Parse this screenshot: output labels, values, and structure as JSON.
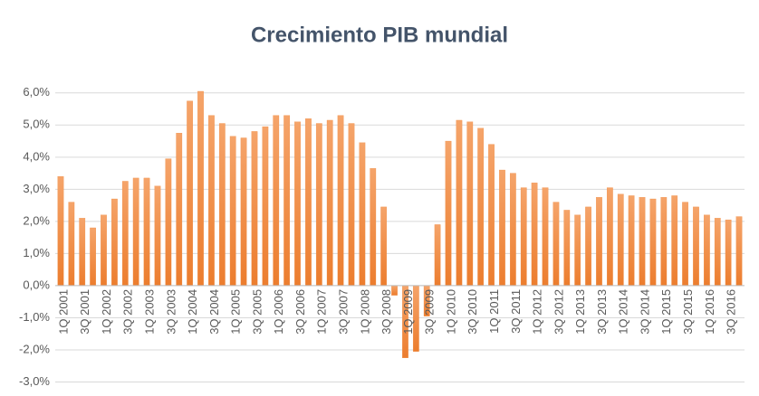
{
  "chart_data": {
    "type": "bar",
    "title": "Crecimiento PIB mundial",
    "categories": [
      "1Q 2001",
      null,
      "3Q 2001",
      null,
      "1Q 2002",
      null,
      "3Q 2002",
      null,
      "1Q 2003",
      null,
      "3Q 2003",
      null,
      "1Q 2004",
      null,
      "3Q 2004",
      null,
      "1Q 2005",
      null,
      "3Q 2005",
      null,
      "1Q 2006",
      null,
      "3Q 2006",
      null,
      "1Q 2007",
      null,
      "3Q 2007",
      null,
      "1Q 2008",
      null,
      "3Q 2008",
      null,
      "1Q 2009",
      null,
      "3Q 2009",
      null,
      "1Q 2010",
      null,
      "3Q 2010",
      null,
      "1Q 2011",
      null,
      "3Q 2011",
      null,
      "1Q 2012",
      null,
      "3Q 2012",
      null,
      "1Q 2013",
      null,
      "3Q 2013",
      null,
      "1Q 2014",
      null,
      "3Q 2014",
      null,
      "1Q 2015",
      null,
      "3Q 2015",
      null,
      "1Q 2016",
      null,
      "3Q 2016",
      null
    ],
    "values": [
      3.4,
      2.6,
      2.1,
      1.8,
      2.2,
      2.7,
      3.25,
      3.35,
      3.35,
      3.1,
      3.95,
      4.75,
      5.75,
      6.05,
      5.3,
      5.05,
      4.65,
      4.6,
      4.8,
      4.95,
      5.3,
      5.3,
      5.1,
      5.2,
      5.05,
      5.15,
      5.3,
      5.05,
      4.45,
      3.65,
      2.45,
      -0.3,
      -2.25,
      -2.05,
      -0.95,
      1.9,
      4.5,
      5.15,
      5.1,
      4.9,
      4.4,
      3.6,
      3.5,
      3.05,
      3.2,
      3.05,
      2.6,
      2.35,
      2.2,
      2.45,
      2.75,
      3.05,
      2.85,
      2.8,
      2.75,
      2.7,
      2.75,
      2.8,
      2.6,
      2.45,
      2.2,
      2.1,
      2.05,
      2.15
    ],
    "color": "#ef8a3f",
    "ylim": [
      -3,
      6.5
    ],
    "yticks": [
      {
        "value": -3,
        "label": "-3,0%"
      },
      {
        "value": -2,
        "label": "-2,0%"
      },
      {
        "value": -1,
        "label": "-1,0%"
      },
      {
        "value": 0,
        "label": "0,0%"
      },
      {
        "value": 1,
        "label": "1,0%"
      },
      {
        "value": 2,
        "label": "2,0%"
      },
      {
        "value": 3,
        "label": "3,0%"
      },
      {
        "value": 4,
        "label": "4,0%"
      },
      {
        "value": 5,
        "label": "5,0%"
      },
      {
        "value": 6,
        "label": "6,0%"
      }
    ],
    "grid": true
  }
}
